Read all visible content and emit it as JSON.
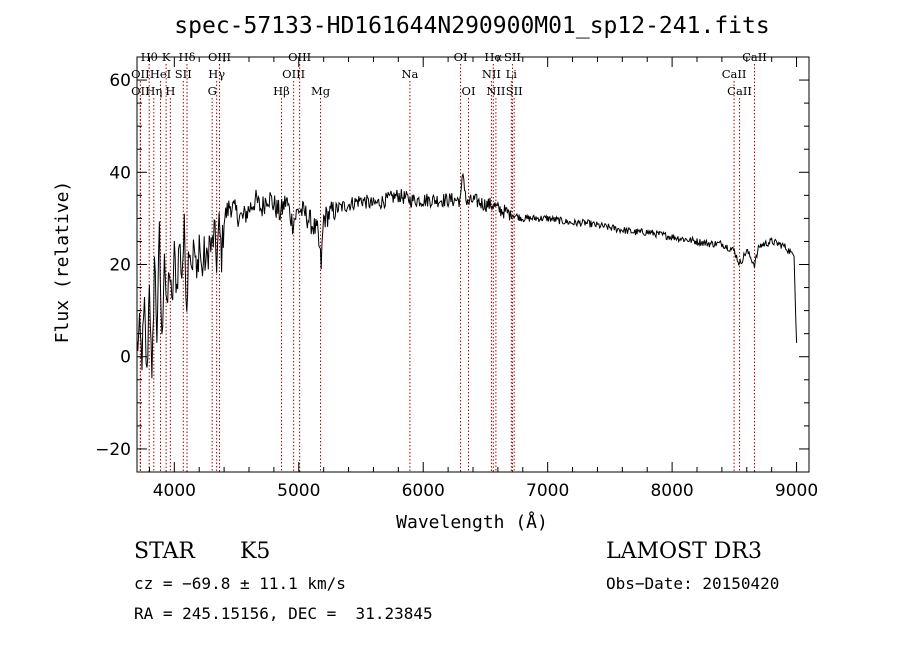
{
  "chart_data": {
    "type": "line",
    "title": "spec-57133-HD161644N290900M01_sp12-241.fits",
    "xlabel": "Wavelength (Å)",
    "ylabel": "Flux (relative)",
    "xlim": [
      3700,
      9100
    ],
    "ylim": [
      -25,
      65
    ],
    "xticks": [
      4000,
      5000,
      6000,
      7000,
      8000,
      9000
    ],
    "yticks": [
      -20,
      0,
      20,
      40,
      60
    ],
    "grid": false,
    "series": [
      {
        "name": "spectrum",
        "x": [
          3700,
          3720,
          3740,
          3760,
          3780,
          3800,
          3820,
          3840,
          3860,
          3880,
          3900,
          3920,
          3940,
          3960,
          3980,
          4000,
          4020,
          4040,
          4060,
          4080,
          4100,
          4120,
          4140,
          4160,
          4180,
          4200,
          4220,
          4240,
          4260,
          4280,
          4300,
          4320,
          4340,
          4360,
          4380,
          4400,
          4450,
          4500,
          4550,
          4600,
          4650,
          4700,
          4750,
          4800,
          4850,
          4900,
          4950,
          5000,
          5050,
          5100,
          5150,
          5180,
          5200,
          5250,
          5300,
          5400,
          5500,
          5600,
          5700,
          5800,
          5900,
          6000,
          6100,
          6200,
          6300,
          6320,
          6350,
          6400,
          6500,
          6560,
          6600,
          6700,
          6800,
          6900,
          7000,
          7100,
          7200,
          7300,
          7400,
          7500,
          7600,
          7700,
          7800,
          7900,
          8000,
          8100,
          8200,
          8300,
          8400,
          8500,
          8542,
          8600,
          8662,
          8700,
          8800,
          8900,
          8980,
          8990,
          9000
        ],
        "y": [
          2,
          5,
          0,
          10,
          -5,
          18,
          -8,
          22,
          5,
          26,
          2,
          24,
          8,
          20,
          10,
          22,
          15,
          25,
          18,
          27,
          12,
          26,
          20,
          24,
          16,
          26,
          18,
          22,
          20,
          25,
          23,
          27,
          21,
          28,
          22,
          30,
          33,
          31,
          30,
          32,
          34,
          32,
          35,
          33,
          31,
          34,
          29,
          32,
          31,
          29,
          27,
          20,
          30,
          31,
          32,
          33,
          34,
          33,
          34,
          35,
          34,
          34,
          34,
          34,
          34,
          40,
          33,
          34,
          33,
          33,
          32,
          31,
          30,
          30,
          30,
          29.5,
          29,
          29,
          28.5,
          28,
          27.5,
          27,
          27,
          26.5,
          26,
          25.5,
          25,
          24.5,
          24.5,
          23,
          20,
          23,
          20,
          24,
          25,
          24,
          22,
          12,
          3
        ]
      }
    ],
    "lines": [
      {
        "label": "Hθ",
        "wavelength": 3798,
        "row": 1
      },
      {
        "label": "OII",
        "wavelength": 3727,
        "row": 2
      },
      {
        "label": "Hη",
        "wavelength": 3835,
        "row": 3
      },
      {
        "label": "OII",
        "wavelength": 3727,
        "row": 3
      },
      {
        "label": "HeI",
        "wavelength": 3889,
        "row": 2
      },
      {
        "label": "K",
        "wavelength": 3934,
        "row": 1
      },
      {
        "label": "H",
        "wavelength": 3968,
        "row": 3
      },
      {
        "label": "SII",
        "wavelength": 4072,
        "row": 2
      },
      {
        "label": "Hδ",
        "wavelength": 4102,
        "row": 1
      },
      {
        "label": "OIII",
        "wavelength": 4363,
        "row": 1
      },
      {
        "label": "Hγ",
        "wavelength": 4340,
        "row": 2
      },
      {
        "label": "G",
        "wavelength": 4304,
        "row": 3
      },
      {
        "label": "Hβ",
        "wavelength": 4861,
        "row": 3
      },
      {
        "label": "OIII",
        "wavelength": 5007,
        "row": 1
      },
      {
        "label": "OIII",
        "wavelength": 4959,
        "row": 2
      },
      {
        "label": "Mg",
        "wavelength": 5175,
        "row": 3
      },
      {
        "label": "Na",
        "wavelength": 5893,
        "row": 2
      },
      {
        "label": "OI",
        "wavelength": 6300,
        "row": 1
      },
      {
        "label": "OI",
        "wavelength": 6364,
        "row": 3
      },
      {
        "label": "Hα",
        "wavelength": 6563,
        "row": 1
      },
      {
        "label": "NII",
        "wavelength": 6548,
        "row": 2
      },
      {
        "label": "NII",
        "wavelength": 6584,
        "row": 3
      },
      {
        "label": "SII",
        "wavelength": 6717,
        "row": 1
      },
      {
        "label": "Li",
        "wavelength": 6708,
        "row": 2
      },
      {
        "label": "SII",
        "wavelength": 6731,
        "row": 3
      },
      {
        "label": "CaII",
        "wavelength": 8662,
        "row": 1
      },
      {
        "label": "CaII",
        "wavelength": 8498,
        "row": 2
      },
      {
        "label": "CaII",
        "wavelength": 8542,
        "row": 3
      }
    ]
  },
  "info": {
    "object_class": "STAR",
    "subclass": "K5",
    "survey": "LAMOST DR3",
    "cz": "cz = −69.8 ± 11.1 km/s",
    "obs_date": "Obs−Date: 20150420",
    "coords": "RA = 245.15156, DEC =  31.23845"
  },
  "colors": {
    "spectrum": "#000000",
    "line_marker": "#aa0000"
  }
}
